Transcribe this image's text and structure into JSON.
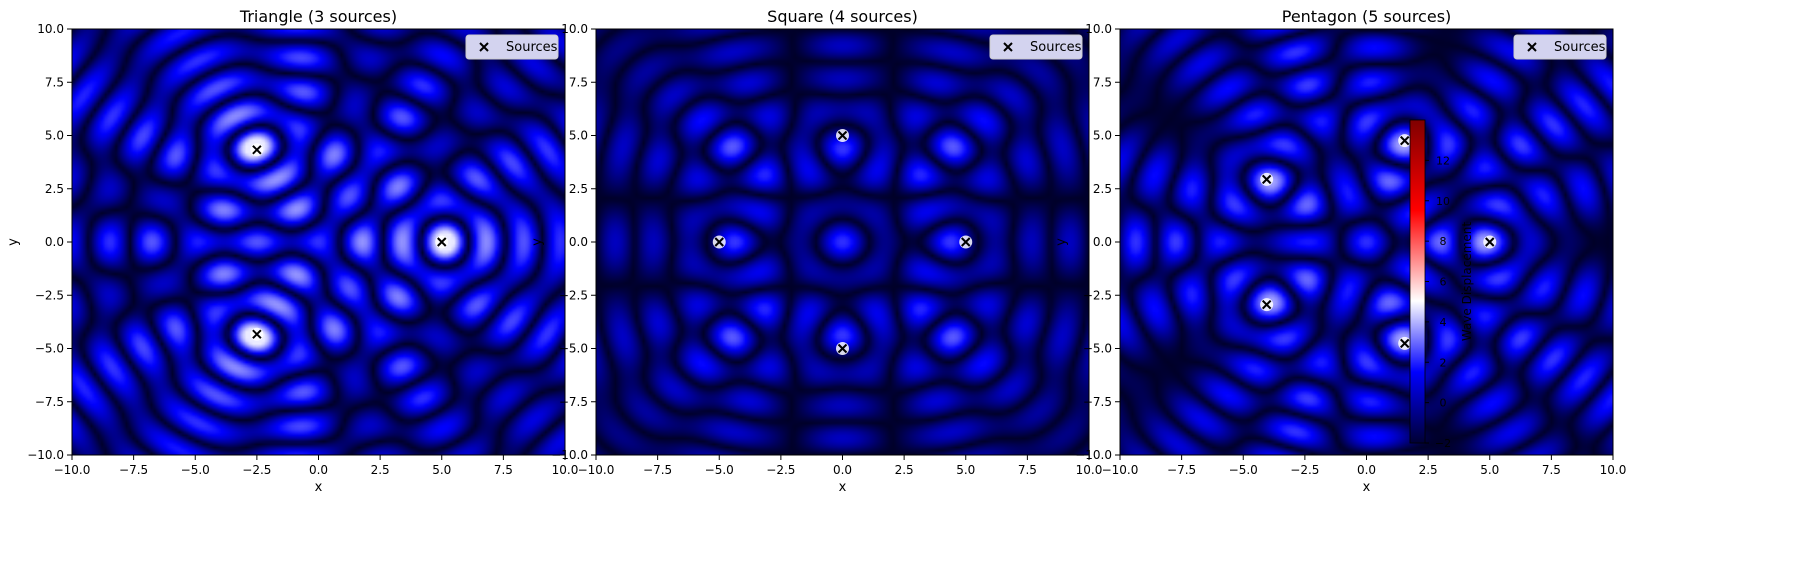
{
  "chart_data": [
    {
      "type": "heatmap",
      "title": "Triangle (3 sources)",
      "xlabel": "x",
      "ylabel": "y",
      "xlim": [
        -10,
        10
      ],
      "ylim": [
        -10,
        10
      ],
      "xticks": [
        -10.0,
        -7.5,
        -5.0,
        -2.5,
        0.0,
        2.5,
        5.0,
        7.5,
        10.0
      ],
      "xtick_labels": [
        "−10.0",
        "−7.5",
        "−5.0",
        "−2.5",
        "0.0",
        "2.5",
        "5.0",
        "7.5",
        "10.0"
      ],
      "yticks": [
        -10.0,
        -7.5,
        -5.0,
        -2.5,
        0.0,
        2.5,
        5.0,
        7.5,
        10.0
      ],
      "ytick_labels": [
        "−10.0",
        "−7.5",
        "−5.0",
        "−2.5",
        "0.0",
        "2.5",
        "5.0",
        "7.5",
        "10.0"
      ],
      "legend": {
        "label": "Sources",
        "position": "upper-right"
      },
      "sources": [
        {
          "x": 5.0,
          "y": 0.0
        },
        {
          "x": -2.5,
          "y": 4.33
        },
        {
          "x": -2.5,
          "y": -4.33
        }
      ],
      "grid": false
    },
    {
      "type": "heatmap",
      "title": "Square (4 sources)",
      "xlabel": "x",
      "ylabel": "y",
      "xlim": [
        -10,
        10
      ],
      "ylim": [
        -10,
        10
      ],
      "xticks": [
        -10.0,
        -7.5,
        -5.0,
        -2.5,
        0.0,
        2.5,
        5.0,
        7.5,
        10.0
      ],
      "xtick_labels": [
        "−10.0",
        "−7.5",
        "−5.0",
        "−2.5",
        "0.0",
        "2.5",
        "5.0",
        "7.5",
        "10.0"
      ],
      "yticks": [
        -10.0,
        -7.5,
        -5.0,
        -2.5,
        0.0,
        2.5,
        5.0,
        7.5,
        10.0
      ],
      "ytick_labels": [
        "−10.0",
        "−7.5",
        "−5.0",
        "−2.5",
        "0.0",
        "2.5",
        "5.0",
        "7.5",
        "10.0"
      ],
      "legend": {
        "label": "Sources",
        "position": "upper-right"
      },
      "sources": [
        {
          "x": 5.0,
          "y": 0.0
        },
        {
          "x": 0.0,
          "y": 5.0
        },
        {
          "x": -5.0,
          "y": 0.0
        },
        {
          "x": 0.0,
          "y": -5.0
        }
      ],
      "grid": false
    },
    {
      "type": "heatmap",
      "title": "Pentagon (5 sources)",
      "xlabel": "x",
      "ylabel": "y",
      "xlim": [
        -10,
        10
      ],
      "ylim": [
        -10,
        10
      ],
      "xticks": [
        -10.0,
        -7.5,
        -5.0,
        -2.5,
        0.0,
        2.5,
        5.0,
        7.5,
        10.0
      ],
      "xtick_labels": [
        "−10.0",
        "−7.5",
        "−5.0",
        "−2.5",
        "0.0",
        "2.5",
        "5.0",
        "7.5",
        "10.0"
      ],
      "yticks": [
        -10.0,
        -7.5,
        -5.0,
        -2.5,
        0.0,
        2.5,
        5.0,
        7.5,
        10.0
      ],
      "ytick_labels": [
        "−10.0",
        "−7.5",
        "−5.0",
        "−2.5",
        "0.0",
        "2.5",
        "5.0",
        "7.5",
        "10.0"
      ],
      "legend": {
        "label": "Sources",
        "position": "upper-right"
      },
      "sources": [
        {
          "x": 5.0,
          "y": 0.0
        },
        {
          "x": 1.55,
          "y": 4.76
        },
        {
          "x": -4.05,
          "y": 2.94
        },
        {
          "x": -4.05,
          "y": -2.94
        },
        {
          "x": 1.55,
          "y": -4.76
        }
      ],
      "grid": false,
      "colorbar": {
        "label": "Wave Displacement",
        "vmin": -2,
        "vmax": 14,
        "ticks": [
          -2,
          0,
          2,
          4,
          6,
          8,
          10,
          12
        ],
        "tick_labels": [
          "−2",
          "0",
          "2",
          "4",
          "6",
          "8",
          "10",
          "12"
        ],
        "colormap": "seismic"
      }
    }
  ],
  "colors": {
    "field_low": "#000033",
    "field_mid": "#0000ff",
    "field_high": "#ffffff",
    "colorbar_top": "#800000",
    "colorbar_red": "#ff0000",
    "legend_bg": "#d3d3ef",
    "source_marker": "#000000"
  }
}
